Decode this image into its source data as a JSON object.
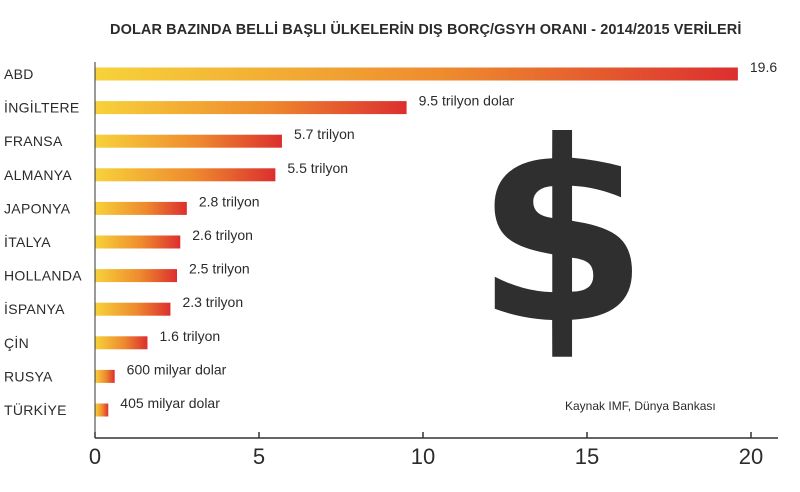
{
  "chart_data": {
    "type": "bar",
    "orientation": "horizontal",
    "title": "DOLAR BAZINDA BELLİ BAŞLI ÜLKELERİN DIŞ BORÇ/GSYH ORANI - 2014/2015 VERİLERİ",
    "categories": [
      "ABD",
      "İNGİLTERE",
      "FRANSA",
      "ALMANYA",
      "JAPONYA",
      "İTALYA",
      "HOLLANDA",
      "İSPANYA",
      "ÇİN",
      "RUSYA",
      "TÜRKİYE"
    ],
    "values": [
      19.6,
      9.5,
      5.7,
      5.5,
      2.8,
      2.6,
      2.5,
      2.3,
      1.6,
      0.6,
      0.405
    ],
    "data_labels": [
      "19.6",
      "9.5 trilyon dolar",
      "5.7 trilyon",
      "5.5 trilyon",
      "2.8 trilyon",
      "2.6 trilyon",
      "2.5 trilyon",
      "2.3 trilyon",
      "1.6 trilyon",
      "600 milyar dolar",
      "405 milyar dolar"
    ],
    "xlim": [
      0,
      20
    ],
    "xticks": [
      "0",
      "5",
      "10",
      "15",
      "20"
    ],
    "xtick_values": [
      0,
      5,
      10,
      15,
      20
    ],
    "grid": false,
    "legend": "none",
    "bar_gradient": [
      "#f7d23a",
      "#ee8a2e",
      "#dc2f2f"
    ],
    "source": "Kaynak IMF, Dünya Bankası",
    "decoration": "$"
  }
}
